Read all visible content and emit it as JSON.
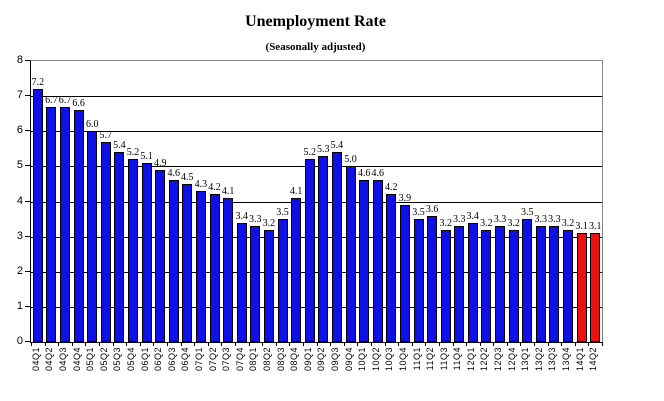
{
  "title": "Unemployment Rate",
  "subtitle": "(Seasonally adjusted)",
  "chart_data": {
    "type": "bar",
    "title": "Unemployment Rate",
    "subtitle": "(Seasonally adjusted)",
    "categories": [
      "04Q1",
      "04Q2",
      "04Q3",
      "04Q4",
      "05Q1",
      "05Q2",
      "05Q3",
      "05Q4",
      "06Q1",
      "06Q2",
      "06Q3",
      "06Q4",
      "07Q1",
      "07Q2",
      "07Q3",
      "07Q4",
      "08Q1",
      "08Q2",
      "08Q3",
      "08Q4",
      "09Q1",
      "09Q2",
      "09Q3",
      "09Q4",
      "10Q1",
      "10Q2",
      "10Q3",
      "10Q4",
      "11Q1",
      "11Q2",
      "11Q3",
      "11Q4",
      "12Q1",
      "12Q2",
      "12Q3",
      "12Q4",
      "13Q1",
      "13Q2",
      "13Q3",
      "13Q4",
      "14Q1",
      "14Q2"
    ],
    "values": [
      7.2,
      6.7,
      6.7,
      6.6,
      6.0,
      5.7,
      5.4,
      5.2,
      5.1,
      4.9,
      4.6,
      4.5,
      4.3,
      4.2,
      4.1,
      3.4,
      3.3,
      3.2,
      3.5,
      4.1,
      5.2,
      5.3,
      5.4,
      5.0,
      4.6,
      4.6,
      4.2,
      3.9,
      3.5,
      3.6,
      3.2,
      3.3,
      3.4,
      3.2,
      3.3,
      3.2,
      3.5,
      3.3,
      3.3,
      3.2,
      3.1,
      3.1
    ],
    "value_labels_shown": true,
    "xlabel": "",
    "ylabel": "",
    "ylim": [
      0,
      8
    ],
    "yticks": [
      0,
      1,
      2,
      3,
      4,
      5,
      6,
      7,
      8
    ],
    "grid": true,
    "legend": "none",
    "bar_color": "#0f0fe8",
    "highlight_color": "#ee1111",
    "highlight_indices": [
      40,
      41
    ],
    "bar_border_color": "#000000",
    "gridline_color": "#000000",
    "plot_border_color": "#848484"
  }
}
